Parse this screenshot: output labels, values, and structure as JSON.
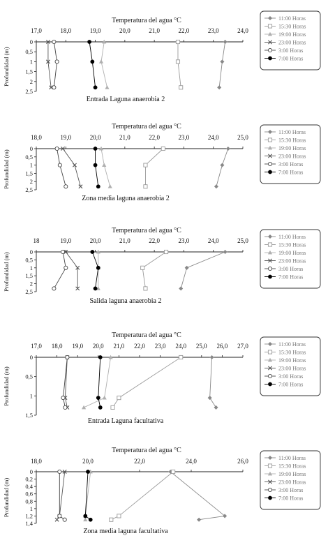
{
  "legend_labels": [
    "11:00 Horas",
    "15:30 Horas",
    "19:00 Horas",
    "23:00 Horas",
    "3:00 Horas",
    "7:00 Horas"
  ],
  "series_styles": [
    {
      "color": "#888888",
      "marker": "diamond"
    },
    {
      "color": "#9a9a9a",
      "marker": "square-open"
    },
    {
      "color": "#b0b0b0",
      "marker": "triangle"
    },
    {
      "color": "#555555",
      "marker": "x"
    },
    {
      "color": "#444444",
      "marker": "circle-open"
    },
    {
      "color": "#000000",
      "marker": "circle"
    }
  ],
  "chart_data": [
    {
      "type": "line",
      "title": "Temperatura del agua °C",
      "xlabel": "Entrada Laguna anaerobia 2",
      "ylabel": "Profundidad (m)",
      "xlim": [
        17.0,
        24.0
      ],
      "xticks": [
        "17,0",
        "18,0",
        "19,0",
        "20,0",
        "21,0",
        "22,0",
        "23,0",
        "24,0"
      ],
      "ylim": [
        0,
        2.5
      ],
      "yticks": [
        "0",
        "0,5",
        "1",
        "1,5",
        "2",
        "2,5"
      ],
      "depths": [
        0,
        1,
        2.3
      ],
      "series": [
        {
          "name": "11:00 Horas",
          "x": [
            23.4,
            23.3,
            23.2
          ]
        },
        {
          "name": "15:30 Horas",
          "x": [
            21.8,
            21.8,
            21.9
          ]
        },
        {
          "name": "19:00 Horas",
          "x": [
            19.3,
            19.2,
            19.4
          ]
        },
        {
          "name": "23:00 Horas",
          "x": [
            17.4,
            17.4,
            17.5
          ]
        },
        {
          "name": "3:00 Horas",
          "x": [
            17.6,
            17.7,
            17.6
          ]
        },
        {
          "name": "7:00 Horas",
          "x": [
            18.8,
            18.9,
            19.0
          ]
        }
      ]
    },
    {
      "type": "line",
      "title": "Temperatura del agua °C",
      "xlabel": "Zona media laguna anaerobia 2",
      "ylabel": "Profundidad (m)",
      "xlim": [
        18.0,
        25.0
      ],
      "xticks": [
        "18,0",
        "19,0",
        "20,0",
        "21,0",
        "22,0",
        "23,0",
        "24,0",
        "25,0"
      ],
      "ylim": [
        0,
        2.5
      ],
      "yticks": [
        "0",
        "0,5",
        "1",
        "1,5",
        "2",
        "2,5"
      ],
      "depths": [
        0,
        1,
        2.3
      ],
      "series": [
        {
          "name": "11:00 Horas",
          "x": [
            24.5,
            24.3,
            24.1
          ]
        },
        {
          "name": "15:30 Horas",
          "x": [
            22.3,
            21.7,
            21.7
          ]
        },
        {
          "name": "19:00 Horas",
          "x": [
            20.2,
            20.3,
            20.5
          ]
        },
        {
          "name": "23:00 Horas",
          "x": [
            18.9,
            19.3,
            19.5
          ]
        },
        {
          "name": "3:00 Horas",
          "x": [
            18.7,
            18.8,
            19.0
          ]
        },
        {
          "name": "7:00 Horas",
          "x": [
            20.0,
            20.0,
            20.1
          ]
        }
      ]
    },
    {
      "type": "line",
      "title": "Temperatura del agua °C",
      "xlabel": "Salida laguna anaerobia 2",
      "ylabel": "Profundidad (m)",
      "xlim": [
        18.0,
        25.0
      ],
      "xticks": [
        "18",
        "19,0",
        "20,0",
        "21,0",
        "22,0",
        "23,0",
        "24,0",
        "25,0"
      ],
      "ylim": [
        0,
        2.5
      ],
      "yticks": [
        "0",
        "0,5",
        "1",
        "1,5",
        "2",
        "2,5"
      ],
      "depths": [
        0,
        1,
        2.3
      ],
      "series": [
        {
          "name": "11:00 Horas",
          "x": [
            24.4,
            23.1,
            22.9
          ]
        },
        {
          "name": "15:30 Horas",
          "x": [
            22.4,
            21.6,
            21.7
          ]
        },
        {
          "name": "19:00 Horas",
          "x": [
            20.1,
            20.1,
            20.1
          ]
        },
        {
          "name": "23:00 Horas",
          "x": [
            19.0,
            19.4,
            19.4
          ]
        },
        {
          "name": "3:00 Horas",
          "x": [
            18.9,
            19.0,
            18.6
          ]
        },
        {
          "name": "7:00 Horas",
          "x": [
            19.9,
            20.1,
            20.0
          ]
        }
      ]
    },
    {
      "type": "line",
      "title": "Temperatura del agua °C",
      "xlabel": "Entrada Laguna facultativa",
      "ylabel": "Profundidad (m)",
      "xlim": [
        17.0,
        27.0
      ],
      "xticks": [
        "17,0",
        "18,0",
        "19,0",
        "20,0",
        "21,0",
        "22,0",
        "23,0",
        "24,0",
        "25,0",
        "26,0",
        "27,0"
      ],
      "ylim": [
        0,
        1.5
      ],
      "yticks": [
        "0",
        "0,5",
        "1",
        "1,5"
      ],
      "depths": [
        0,
        1.05,
        1.3
      ],
      "series": [
        {
          "name": "11:00 Horas",
          "x": [
            25.5,
            25.4,
            25.7
          ]
        },
        {
          "name": "15:30 Horas",
          "x": [
            24.0,
            21.0,
            20.7
          ]
        },
        {
          "name": "19:00 Horas",
          "x": [
            20.6,
            20.3,
            19.3
          ]
        },
        {
          "name": "23:00 Horas",
          "x": [
            18.5,
            18.4,
            18.5
          ]
        },
        {
          "name": "3:00 Horas",
          "x": [
            18.5,
            18.3,
            18.4
          ]
        },
        {
          "name": "7:00 Horas",
          "x": [
            20.1,
            20.0,
            20.1
          ]
        }
      ]
    },
    {
      "type": "line",
      "title": "Temperatura del agua °C",
      "xlabel": "Zona media laguna facultativa",
      "ylabel": "Profundidad (m)",
      "xlim": [
        18.0,
        26.0
      ],
      "xticks": [
        "18,0",
        "20,0",
        "22,0",
        "24,0",
        "26,0"
      ],
      "ylim": [
        0,
        1.4
      ],
      "yticks": [
        "0",
        "0,2",
        "0,4",
        "0,6",
        "0,8",
        "1",
        "1,2",
        "1,4"
      ],
      "depths": [
        0,
        1.2,
        1.3
      ],
      "series": [
        {
          "name": "11:00 Horas",
          "x": [
            23.2,
            25.3,
            24.3
          ]
        },
        {
          "name": "15:30 Horas",
          "x": [
            23.3,
            21.2,
            20.9
          ]
        },
        {
          "name": "19:00 Horas",
          "x": [
            20.1,
            19.9,
            19.9
          ]
        },
        {
          "name": "23:00 Horas",
          "x": [
            19.1,
            18.9,
            18.8
          ]
        },
        {
          "name": "3:00 Horas",
          "x": [
            18.9,
            18.9,
            19.1
          ]
        },
        {
          "name": "7:00 Horas",
          "x": [
            20.0,
            19.9,
            20.1
          ]
        }
      ]
    }
  ]
}
